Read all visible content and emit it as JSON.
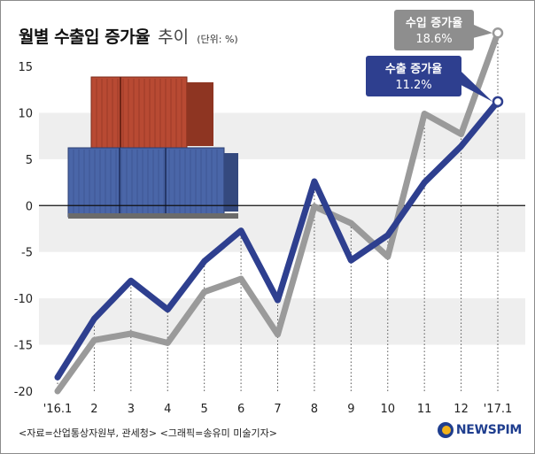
{
  "title": {
    "main": "월별 수출입 증가율",
    "sub": "추이",
    "unit": "(단위: %)"
  },
  "source_note": "<자료=산업통상자원부, 관세청> <그래픽=송유미 미술기자>",
  "brand": "NEWSPIM",
  "colors": {
    "export_line": "#2e3f8f",
    "import_line": "#9a9a9a",
    "band": "#eeeeee",
    "callout_export": "#2e3f8f",
    "callout_import": "#8e8e8e"
  },
  "chart_data": {
    "type": "line",
    "categories": [
      "'16.1",
      "2",
      "3",
      "4",
      "5",
      "6",
      "7",
      "8",
      "9",
      "10",
      "11",
      "12",
      "'17.1"
    ],
    "ylim": [
      -20,
      15
    ],
    "yticks": [
      15,
      10,
      5,
      0,
      -5,
      -10,
      -15,
      -20
    ],
    "grid": "alternating horizontal bands with dotted vertical guides",
    "series": [
      {
        "name": "수출 증가율",
        "color": "#2e3f8f",
        "values": [
          -18.5,
          -12.2,
          -8.1,
          -11.2,
          -6.0,
          -2.7,
          -10.2,
          2.6,
          -5.9,
          -3.2,
          2.5,
          6.4,
          11.2
        ]
      },
      {
        "name": "수입 증가율",
        "color": "#9a9a9a",
        "values": [
          -20.0,
          -14.5,
          -13.8,
          -14.8,
          -9.3,
          -7.9,
          -13.9,
          -0.1,
          -1.9,
          -5.5,
          9.9,
          7.7,
          18.6
        ]
      }
    ],
    "callouts": [
      {
        "label": "수입 증가율",
        "value": "18.6%",
        "series": 1,
        "color": "#8e8e8e"
      },
      {
        "label": "수출 증가율",
        "value": "11.2%",
        "series": 0,
        "color": "#2e3f8f"
      }
    ]
  }
}
